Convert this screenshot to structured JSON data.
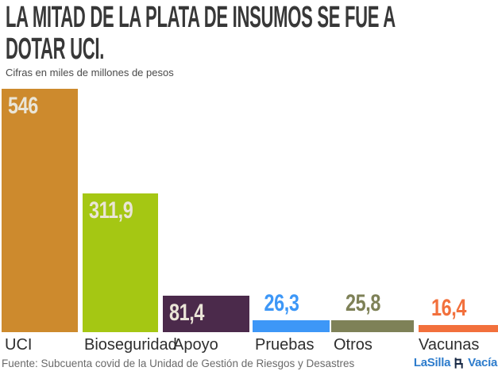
{
  "header": {
    "title_line1": "LA MITAD DE LA PLATA DE INSUMOS SE FUE A",
    "title_line2": "DOTAR UCI.",
    "subtitle": "Cifras en miles de millones de pesos"
  },
  "chart_data": {
    "type": "bar",
    "title": "La mitad de la plata de insumos se fue a dotar UCI.",
    "units_note": "Cifras en miles de millones de pesos",
    "categories": [
      "UCI",
      "Bioseguridad",
      "Apoyo",
      "Pruebas",
      "Otros",
      "Vacunas"
    ],
    "values": [
      546,
      311.9,
      81.4,
      26.3,
      25.8,
      16.4
    ],
    "value_labels": [
      "546",
      "311,9",
      "81,4",
      "26,3",
      "25,8",
      "16,4"
    ],
    "bar_colors": [
      "#cd8a2d",
      "#a5c713",
      "#4b2a4b",
      "#3d97f7",
      "#7e8157",
      "#f2703c"
    ],
    "value_label_inside": [
      true,
      true,
      true,
      false,
      false,
      false
    ],
    "inside_label_color": "#eae5d7",
    "ylim": [
      0,
      546
    ],
    "grid": false,
    "legend": false,
    "last_bar_cropped_at_right_edge": true
  },
  "footer": {
    "source": "Fuente: Subcuenta covid de la Unidad de Gestión de Riesgos y Desastres",
    "logo": {
      "part1": "LaSilla",
      "part2": "Vacía",
      "color": "#2d7ccc"
    }
  }
}
